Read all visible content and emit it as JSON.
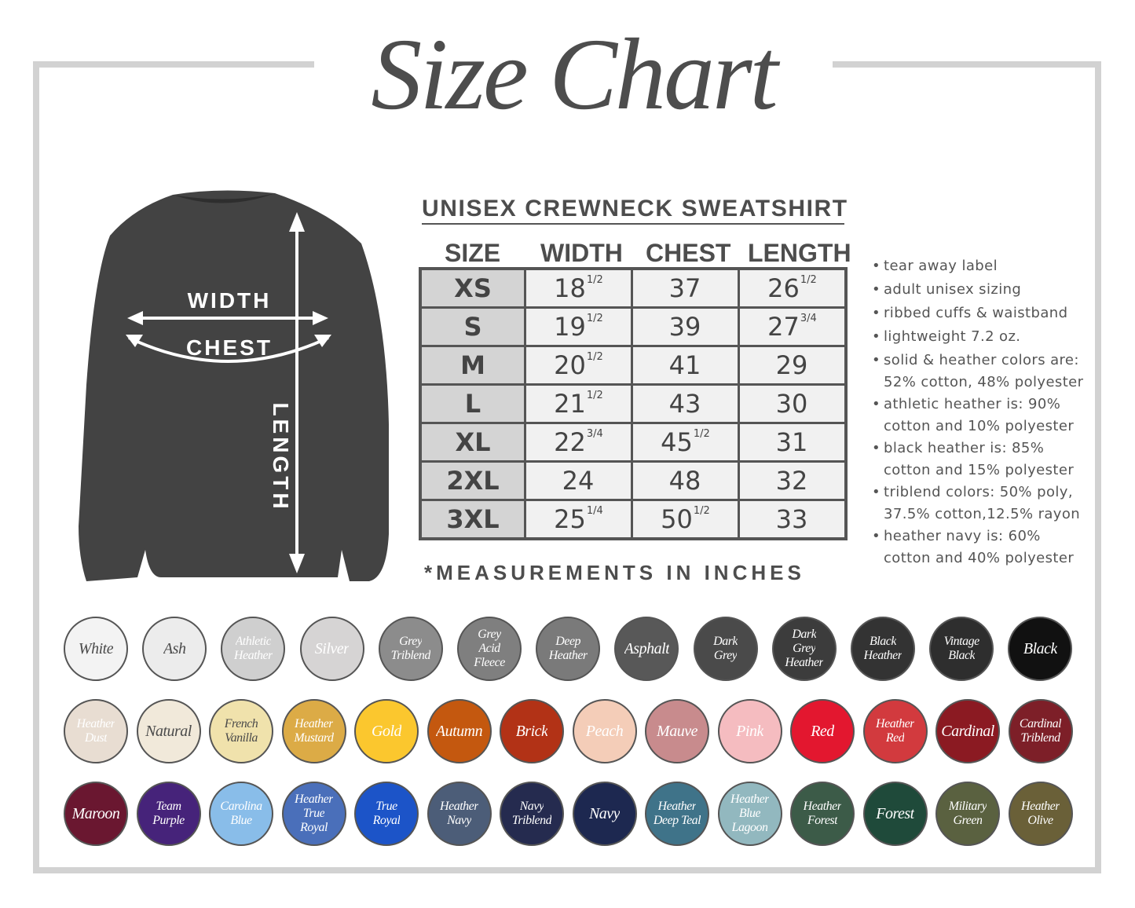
{
  "title": "Size Chart",
  "product": "UNISEX CREWNECK SWEATSHIRT",
  "diagram": {
    "width_label": "WIDTH",
    "chest_label": "CHEST",
    "length_label": "LENGTH",
    "shirt_color": "#434343"
  },
  "table": {
    "headers": [
      "SIZE",
      "WIDTH",
      "CHEST",
      "LENGTH"
    ],
    "rows": [
      {
        "size": "XS",
        "width": "18",
        "width_frac": "1/2",
        "chest": "37",
        "chest_frac": "",
        "length": "26",
        "length_frac": "1/2"
      },
      {
        "size": "S",
        "width": "19",
        "width_frac": "1/2",
        "chest": "39",
        "chest_frac": "",
        "length": "27",
        "length_frac": "3/4"
      },
      {
        "size": "M",
        "width": "20",
        "width_frac": "1/2",
        "chest": "41",
        "chest_frac": "",
        "length": "29",
        "length_frac": ""
      },
      {
        "size": "L",
        "width": "21",
        "width_frac": "1/2",
        "chest": "43",
        "chest_frac": "",
        "length": "30",
        "length_frac": ""
      },
      {
        "size": "XL",
        "width": "22",
        "width_frac": "3/4",
        "chest": "45",
        "chest_frac": "1/2",
        "length": "31",
        "length_frac": ""
      },
      {
        "size": "2XL",
        "width": "24",
        "width_frac": "",
        "chest": "48",
        "chest_frac": "",
        "length": "32",
        "length_frac": ""
      },
      {
        "size": "3XL",
        "width": "25",
        "width_frac": "1/4",
        "chest": "50",
        "chest_frac": "1/2",
        "length": "33",
        "length_frac": ""
      }
    ],
    "footnote": "*MEASUREMENTS IN INCHES"
  },
  "notes": [
    [
      "tear away label"
    ],
    [
      "adult unisex sizing"
    ],
    [
      "ribbed cuffs & waistband"
    ],
    [
      "lightweight 7.2 oz."
    ],
    [
      "solid & heather colors are:",
      "52% cotton, 48% polyester"
    ],
    [
      "athletic heather is: 90%",
      "cotton and 10% polyester"
    ],
    [
      "black heather is: 85%",
      "cotton and 15% polyester"
    ],
    [
      "triblend colors: 50% poly,",
      "37.5% cotton,12.5% rayon"
    ],
    [
      "heather navy is: 60%",
      "cotton and 40% polyester"
    ]
  ],
  "swatches": [
    [
      {
        "lines": [
          "White"
        ],
        "bg": "#f3f3f3",
        "fg": "#4a4a4a"
      },
      {
        "lines": [
          "Ash"
        ],
        "bg": "#ececec",
        "fg": "#4a4a4a"
      },
      {
        "lines": [
          "Athletic",
          "Heather"
        ],
        "bg": "#cfcfcf",
        "fg": "#ffffff"
      },
      {
        "lines": [
          "Silver"
        ],
        "bg": "#d6d4d4",
        "fg": "#ffffff"
      },
      {
        "lines": [
          "Grey",
          "Triblend"
        ],
        "bg": "#8c8c8c",
        "fg": "#ffffff"
      },
      {
        "lines": [
          "Grey",
          "Acid",
          "Fleece"
        ],
        "bg": "#7f7f7f",
        "fg": "#ffffff"
      },
      {
        "lines": [
          "Deep",
          "Heather"
        ],
        "bg": "#7a7a7a",
        "fg": "#ffffff"
      },
      {
        "lines": [
          "Asphalt"
        ],
        "bg": "#585858",
        "fg": "#ffffff"
      },
      {
        "lines": [
          "Dark",
          "Grey"
        ],
        "bg": "#4a4a4a",
        "fg": "#ffffff"
      },
      {
        "lines": [
          "Dark",
          "Grey",
          "Heather"
        ],
        "bg": "#3c3c3c",
        "fg": "#ffffff"
      },
      {
        "lines": [
          "Black",
          "Heather"
        ],
        "bg": "#333333",
        "fg": "#ffffff"
      },
      {
        "lines": [
          "Vintage",
          "Black"
        ],
        "bg": "#2e2e2e",
        "fg": "#ffffff"
      },
      {
        "lines": [
          "Black"
        ],
        "bg": "#111111",
        "fg": "#ffffff"
      }
    ],
    [
      {
        "lines": [
          "Heather",
          "Dust"
        ],
        "bg": "#e8ddd2",
        "fg": "#ffffff"
      },
      {
        "lines": [
          "Natural"
        ],
        "bg": "#f1e9da",
        "fg": "#4a4a4a"
      },
      {
        "lines": [
          "French",
          "Vanilla"
        ],
        "bg": "#f0e2ac",
        "fg": "#4a4a4a"
      },
      {
        "lines": [
          "Heather",
          "Mustard"
        ],
        "bg": "#dcab46",
        "fg": "#ffffff"
      },
      {
        "lines": [
          "Gold"
        ],
        "bg": "#fbc72e",
        "fg": "#ffffff"
      },
      {
        "lines": [
          "Autumn"
        ],
        "bg": "#c4580f",
        "fg": "#ffffff"
      },
      {
        "lines": [
          "Brick"
        ],
        "bg": "#b23216",
        "fg": "#ffffff"
      },
      {
        "lines": [
          "Peach"
        ],
        "bg": "#f4cdb8",
        "fg": "#ffffff"
      },
      {
        "lines": [
          "Mauve"
        ],
        "bg": "#c88b8d",
        "fg": "#ffffff"
      },
      {
        "lines": [
          "Pink"
        ],
        "bg": "#f5bcc0",
        "fg": "#ffffff"
      },
      {
        "lines": [
          "Red"
        ],
        "bg": "#e3172f",
        "fg": "#ffffff"
      },
      {
        "lines": [
          "Heather",
          "Red"
        ],
        "bg": "#d23a3e",
        "fg": "#ffffff"
      },
      {
        "lines": [
          "Cardinal"
        ],
        "bg": "#8b1a22",
        "fg": "#ffffff"
      },
      {
        "lines": [
          "Cardinal",
          "Triblend"
        ],
        "bg": "#7d1f28",
        "fg": "#ffffff"
      }
    ],
    [
      {
        "lines": [
          "Maroon"
        ],
        "bg": "#6a1730",
        "fg": "#ffffff"
      },
      {
        "lines": [
          "Team",
          "Purple"
        ],
        "bg": "#46237a",
        "fg": "#ffffff"
      },
      {
        "lines": [
          "Carolina",
          "Blue"
        ],
        "bg": "#89bde9",
        "fg": "#ffffff"
      },
      {
        "lines": [
          "Heather",
          "True",
          "Royal"
        ],
        "bg": "#4a6fba",
        "fg": "#ffffff"
      },
      {
        "lines": [
          "True",
          "Royal"
        ],
        "bg": "#1c54c8",
        "fg": "#ffffff"
      },
      {
        "lines": [
          "Heather",
          "Navy"
        ],
        "bg": "#4c5d78",
        "fg": "#ffffff"
      },
      {
        "lines": [
          "Navy",
          "Triblend"
        ],
        "bg": "#252b4f",
        "fg": "#ffffff"
      },
      {
        "lines": [
          "Navy"
        ],
        "bg": "#1d2850",
        "fg": "#ffffff"
      },
      {
        "lines": [
          "Heather",
          "Deep Teal"
        ],
        "bg": "#3f7389",
        "fg": "#ffffff"
      },
      {
        "lines": [
          "Heather",
          "Blue",
          "Lagoon"
        ],
        "bg": "#92b8bf",
        "fg": "#ffffff"
      },
      {
        "lines": [
          "Heather",
          "Forest"
        ],
        "bg": "#3c5b48",
        "fg": "#ffffff"
      },
      {
        "lines": [
          "Forest"
        ],
        "bg": "#1f4a3a",
        "fg": "#ffffff"
      },
      {
        "lines": [
          "Military",
          "Green"
        ],
        "bg": "#5a6140",
        "fg": "#ffffff"
      },
      {
        "lines": [
          "Heather",
          "Olive"
        ],
        "bg": "#6a6038",
        "fg": "#ffffff"
      }
    ]
  ]
}
